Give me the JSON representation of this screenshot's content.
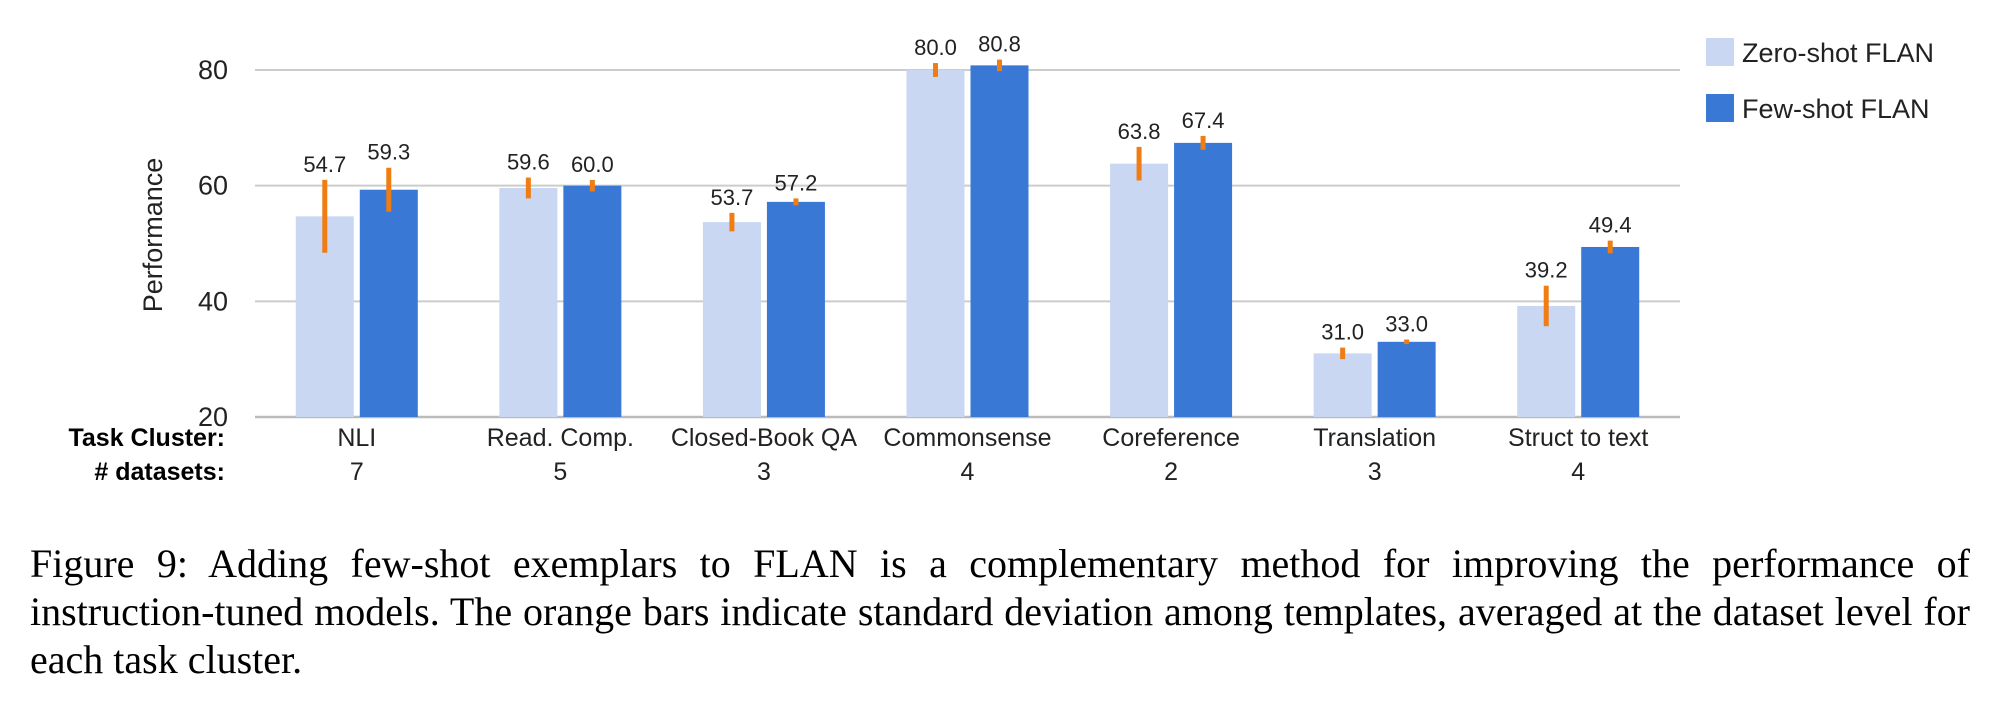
{
  "chart_data": {
    "type": "bar",
    "ylabel": "Performance",
    "ylim": [
      20,
      80
    ],
    "yticks": [
      20,
      40,
      60,
      80
    ],
    "grid": true,
    "legend_position": "top-right",
    "row_labels": {
      "categories": "Task Cluster:",
      "counts": "# datasets:"
    },
    "categories": [
      "NLI",
      "Read. Comp.",
      "Closed-Book QA",
      "Commonsense",
      "Coreference",
      "Translation",
      "Struct to text"
    ],
    "dataset_counts": [
      "7",
      "5",
      "3",
      "4",
      "2",
      "3",
      "4"
    ],
    "series": [
      {
        "name": "Zero-shot FLAN",
        "values": [
          54.7,
          59.6,
          53.7,
          80.0,
          63.8,
          31.0,
          39.2
        ],
        "labels": [
          "54.7",
          "59.6",
          "53.7",
          "80.0",
          "63.8",
          "31.0",
          "39.2"
        ],
        "std": [
          6.3,
          1.8,
          1.6,
          1.2,
          2.9,
          1.0,
          3.5
        ]
      },
      {
        "name": "Few-shot FLAN",
        "values": [
          59.3,
          60.0,
          57.2,
          80.8,
          67.4,
          33.0,
          49.4
        ],
        "labels": [
          "59.3",
          "60.0",
          "57.2",
          "80.8",
          "67.4",
          "33.0",
          "49.4"
        ],
        "std": [
          3.8,
          1.0,
          0.6,
          1.0,
          1.2,
          0.4,
          1.1
        ]
      }
    ],
    "colors": {
      "series": [
        "#c9d7f2",
        "#3a78d6"
      ],
      "error_bar": "#f07c14",
      "grid": "#cccccc",
      "axis": "#bbbbbb"
    }
  },
  "caption": "Figure 9:   Adding few-shot exemplars to FLAN is a complementary method for improving the performance of instruction-tuned models.  The orange bars indicate standard deviation among templates, averaged at the dataset level for each task cluster."
}
